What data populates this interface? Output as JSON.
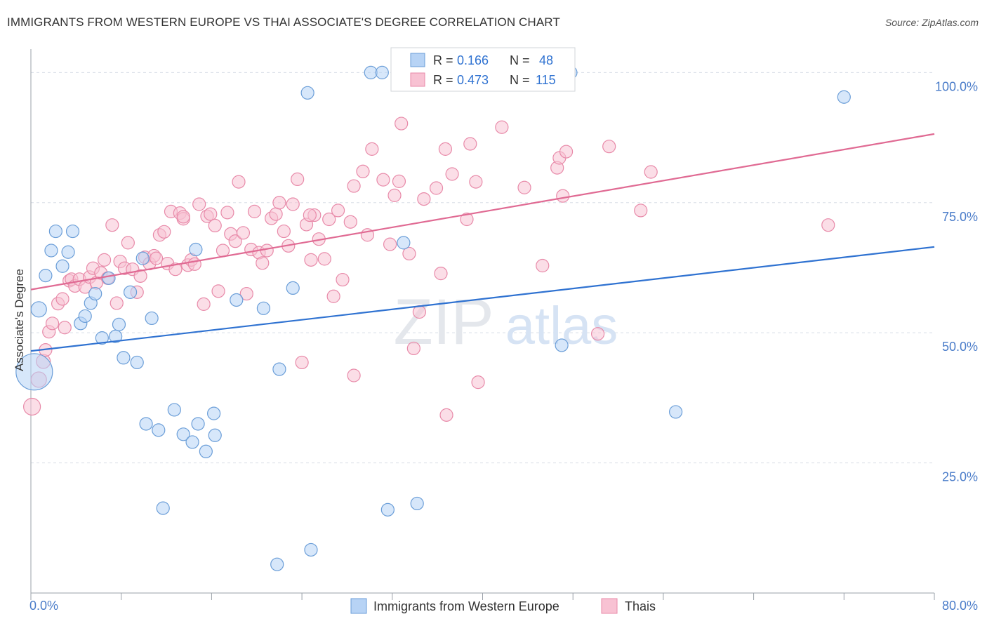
{
  "title": "IMMIGRANTS FROM WESTERN EUROPE VS THAI ASSOCIATE'S DEGREE CORRELATION CHART",
  "source": "Source: ZipAtlas.com",
  "watermark": {
    "zip": "ZIP",
    "atlas": "atlas"
  },
  "colors": {
    "blue_fill": "#b7d3f5",
    "blue_stroke": "#6b9ed8",
    "blue_line": "#2f72d1",
    "pink_fill": "#f8c2d3",
    "pink_stroke": "#e88aa9",
    "pink_line": "#e06a93",
    "axis_text": "#4a7cc9",
    "grid": "#d8dde6"
  },
  "chart_data": {
    "type": "scatter",
    "title": "IMMIGRANTS FROM WESTERN EUROPE VS THAI ASSOCIATE'S DEGREE CORRELATION CHART",
    "xlabel": "",
    "ylabel": "Associate's Degree",
    "xlim": [
      0,
      80
    ],
    "ylim": [
      0,
      104.5
    ],
    "x_tick_labels": [
      "0.0%",
      "80.0%"
    ],
    "y_ticks": [
      25,
      50,
      75,
      100
    ],
    "y_tick_labels": [
      "25.0%",
      "50.0%",
      "75.0%",
      "100.0%"
    ],
    "legend": {
      "position": "top-center",
      "entries": [
        {
          "r_label": "R = ",
          "r_value": "0.166",
          "n_label": "N = ",
          "n_value": "48"
        },
        {
          "r_label": "R = ",
          "r_value": "0.473",
          "n_label": "N = ",
          "n_value": "115"
        }
      ]
    },
    "bottom_legend": [
      "Immigrants from Western Europe",
      "Thais"
    ],
    "series": [
      {
        "name": "Immigrants from Western Europe",
        "color": "blue",
        "trend": {
          "x": [
            0,
            80
          ],
          "y": [
            46.5,
            66.5
          ]
        },
        "points": [
          {
            "x": 0.3,
            "y": 42.5,
            "s": 26
          },
          {
            "x": 0.7,
            "y": 54.5,
            "s": 11
          },
          {
            "x": 1.3,
            "y": 61.0,
            "s": 9
          },
          {
            "x": 1.8,
            "y": 65.8,
            "s": 9
          },
          {
            "x": 2.2,
            "y": 69.5,
            "s": 9
          },
          {
            "x": 2.8,
            "y": 62.8,
            "s": 9
          },
          {
            "x": 3.3,
            "y": 65.5,
            "s": 9
          },
          {
            "x": 3.7,
            "y": 69.5,
            "s": 9
          },
          {
            "x": 4.4,
            "y": 51.8,
            "s": 9
          },
          {
            "x": 4.8,
            "y": 53.2,
            "s": 9
          },
          {
            "x": 5.3,
            "y": 55.7,
            "s": 9
          },
          {
            "x": 5.7,
            "y": 57.5,
            "s": 9
          },
          {
            "x": 6.3,
            "y": 49.0,
            "s": 9
          },
          {
            "x": 6.9,
            "y": 60.5,
            "s": 9
          },
          {
            "x": 7.5,
            "y": 49.3,
            "s": 9
          },
          {
            "x": 7.8,
            "y": 51.6,
            "s": 9
          },
          {
            "x": 8.2,
            "y": 45.2,
            "s": 9
          },
          {
            "x": 8.8,
            "y": 57.8,
            "s": 9
          },
          {
            "x": 9.4,
            "y": 44.3,
            "s": 9
          },
          {
            "x": 10.2,
            "y": 32.5,
            "s": 9
          },
          {
            "x": 10.7,
            "y": 52.8,
            "s": 9
          },
          {
            "x": 11.3,
            "y": 31.3,
            "s": 9
          },
          {
            "x": 11.7,
            "y": 16.3,
            "s": 9
          },
          {
            "x": 12.7,
            "y": 35.2,
            "s": 9
          },
          {
            "x": 13.5,
            "y": 30.5,
            "s": 9
          },
          {
            "x": 14.3,
            "y": 29.0,
            "s": 9
          },
          {
            "x": 14.8,
            "y": 32.5,
            "s": 9
          },
          {
            "x": 15.5,
            "y": 27.2,
            "s": 9
          },
          {
            "x": 16.3,
            "y": 30.3,
            "s": 9
          },
          {
            "x": 16.2,
            "y": 34.5,
            "s": 9
          },
          {
            "x": 14.6,
            "y": 66.0,
            "s": 9
          },
          {
            "x": 18.2,
            "y": 56.3,
            "s": 9
          },
          {
            "x": 20.6,
            "y": 54.7,
            "s": 9
          },
          {
            "x": 22.0,
            "y": 43.0,
            "s": 9
          },
          {
            "x": 23.2,
            "y": 58.6,
            "s": 9
          },
          {
            "x": 21.8,
            "y": 5.5,
            "s": 9
          },
          {
            "x": 24.8,
            "y": 8.3,
            "s": 9
          },
          {
            "x": 24.5,
            "y": 96.1,
            "s": 9
          },
          {
            "x": 30.1,
            "y": 100.0,
            "s": 9
          },
          {
            "x": 31.1,
            "y": 100.0,
            "s": 9
          },
          {
            "x": 31.6,
            "y": 16.0,
            "s": 9
          },
          {
            "x": 34.2,
            "y": 17.2,
            "s": 9
          },
          {
            "x": 33.0,
            "y": 67.3,
            "s": 9
          },
          {
            "x": 47.8,
            "y": 100.0,
            "s": 9
          },
          {
            "x": 47.0,
            "y": 47.6,
            "s": 9
          },
          {
            "x": 57.1,
            "y": 34.8,
            "s": 9
          },
          {
            "x": 72.0,
            "y": 95.3,
            "s": 9
          },
          {
            "x": 9.9,
            "y": 64.3,
            "s": 9
          }
        ]
      },
      {
        "name": "Thais",
        "color": "pink",
        "trend": {
          "x": [
            0,
            80
          ],
          "y": [
            58.3,
            88.2
          ]
        },
        "points": [
          {
            "x": 0.1,
            "y": 35.8,
            "s": 12
          },
          {
            "x": 0.7,
            "y": 41.0,
            "s": 11
          },
          {
            "x": 1.1,
            "y": 44.5,
            "s": 10
          },
          {
            "x": 1.3,
            "y": 46.7,
            "s": 9
          },
          {
            "x": 1.6,
            "y": 50.2,
            "s": 9
          },
          {
            "x": 1.9,
            "y": 51.8,
            "s": 9
          },
          {
            "x": 2.4,
            "y": 55.6,
            "s": 9
          },
          {
            "x": 2.8,
            "y": 56.5,
            "s": 9
          },
          {
            "x": 3.0,
            "y": 51.0,
            "s": 9
          },
          {
            "x": 3.4,
            "y": 60.0,
            "s": 9
          },
          {
            "x": 3.6,
            "y": 60.3,
            "s": 9
          },
          {
            "x": 3.9,
            "y": 59.0,
            "s": 9
          },
          {
            "x": 4.3,
            "y": 60.3,
            "s": 9
          },
          {
            "x": 4.8,
            "y": 58.8,
            "s": 9
          },
          {
            "x": 5.2,
            "y": 60.7,
            "s": 9
          },
          {
            "x": 5.5,
            "y": 62.4,
            "s": 9
          },
          {
            "x": 5.8,
            "y": 59.6,
            "s": 9
          },
          {
            "x": 6.2,
            "y": 61.5,
            "s": 9
          },
          {
            "x": 6.5,
            "y": 64.0,
            "s": 9
          },
          {
            "x": 6.8,
            "y": 60.5,
            "s": 9
          },
          {
            "x": 7.2,
            "y": 70.7,
            "s": 9
          },
          {
            "x": 7.6,
            "y": 55.7,
            "s": 9
          },
          {
            "x": 7.9,
            "y": 63.7,
            "s": 9
          },
          {
            "x": 8.3,
            "y": 62.4,
            "s": 9
          },
          {
            "x": 8.6,
            "y": 67.3,
            "s": 9
          },
          {
            "x": 9.0,
            "y": 62.2,
            "s": 9
          },
          {
            "x": 9.4,
            "y": 57.8,
            "s": 9
          },
          {
            "x": 9.7,
            "y": 60.9,
            "s": 9
          },
          {
            "x": 10.1,
            "y": 64.5,
            "s": 9
          },
          {
            "x": 10.5,
            "y": 63.3,
            "s": 9
          },
          {
            "x": 10.9,
            "y": 64.8,
            "s": 9
          },
          {
            "x": 11.1,
            "y": 64.3,
            "s": 9
          },
          {
            "x": 11.4,
            "y": 68.8,
            "s": 9
          },
          {
            "x": 11.8,
            "y": 69.4,
            "s": 9
          },
          {
            "x": 12.1,
            "y": 63.3,
            "s": 9
          },
          {
            "x": 12.4,
            "y": 73.3,
            "s": 9
          },
          {
            "x": 12.8,
            "y": 62.2,
            "s": 9
          },
          {
            "x": 13.2,
            "y": 73.0,
            "s": 9
          },
          {
            "x": 13.5,
            "y": 71.9,
            "s": 9
          },
          {
            "x": 13.9,
            "y": 63.0,
            "s": 9
          },
          {
            "x": 14.2,
            "y": 64.0,
            "s": 9
          },
          {
            "x": 14.5,
            "y": 63.2,
            "s": 9
          },
          {
            "x": 14.9,
            "y": 74.7,
            "s": 9
          },
          {
            "x": 15.3,
            "y": 55.5,
            "s": 9
          },
          {
            "x": 15.6,
            "y": 72.4,
            "s": 9
          },
          {
            "x": 15.9,
            "y": 72.8,
            "s": 9
          },
          {
            "x": 16.3,
            "y": 70.6,
            "s": 9
          },
          {
            "x": 16.6,
            "y": 58.0,
            "s": 9
          },
          {
            "x": 17.0,
            "y": 65.8,
            "s": 9
          },
          {
            "x": 17.4,
            "y": 73.1,
            "s": 9
          },
          {
            "x": 17.7,
            "y": 69.0,
            "s": 9
          },
          {
            "x": 18.1,
            "y": 67.6,
            "s": 9
          },
          {
            "x": 18.4,
            "y": 79.0,
            "s": 9
          },
          {
            "x": 18.8,
            "y": 69.2,
            "s": 9
          },
          {
            "x": 19.1,
            "y": 57.5,
            "s": 9
          },
          {
            "x": 19.5,
            "y": 66.0,
            "s": 9
          },
          {
            "x": 19.8,
            "y": 73.3,
            "s": 9
          },
          {
            "x": 20.2,
            "y": 65.4,
            "s": 9
          },
          {
            "x": 20.5,
            "y": 63.4,
            "s": 9
          },
          {
            "x": 20.9,
            "y": 65.8,
            "s": 9
          },
          {
            "x": 21.3,
            "y": 72.0,
            "s": 9
          },
          {
            "x": 21.7,
            "y": 72.8,
            "s": 9
          },
          {
            "x": 22.0,
            "y": 75.0,
            "s": 9
          },
          {
            "x": 22.4,
            "y": 69.5,
            "s": 9
          },
          {
            "x": 22.8,
            "y": 66.7,
            "s": 9
          },
          {
            "x": 23.2,
            "y": 74.7,
            "s": 9
          },
          {
            "x": 23.6,
            "y": 79.5,
            "s": 9
          },
          {
            "x": 24.0,
            "y": 44.3,
            "s": 9
          },
          {
            "x": 24.4,
            "y": 70.8,
            "s": 9
          },
          {
            "x": 24.8,
            "y": 64.0,
            "s": 9
          },
          {
            "x": 25.1,
            "y": 72.6,
            "s": 9
          },
          {
            "x": 25.5,
            "y": 68.0,
            "s": 9
          },
          {
            "x": 26.0,
            "y": 64.2,
            "s": 9
          },
          {
            "x": 26.4,
            "y": 71.8,
            "s": 9
          },
          {
            "x": 26.8,
            "y": 57.0,
            "s": 9
          },
          {
            "x": 27.2,
            "y": 73.5,
            "s": 9
          },
          {
            "x": 27.6,
            "y": 60.2,
            "s": 9
          },
          {
            "x": 28.3,
            "y": 71.3,
            "s": 9
          },
          {
            "x": 28.6,
            "y": 78.2,
            "s": 9
          },
          {
            "x": 28.6,
            "y": 41.8,
            "s": 9
          },
          {
            "x": 29.4,
            "y": 81.0,
            "s": 9
          },
          {
            "x": 29.8,
            "y": 68.8,
            "s": 9
          },
          {
            "x": 30.2,
            "y": 85.3,
            "s": 9
          },
          {
            "x": 31.2,
            "y": 79.4,
            "s": 9
          },
          {
            "x": 31.8,
            "y": 67.0,
            "s": 9
          },
          {
            "x": 32.2,
            "y": 76.4,
            "s": 9
          },
          {
            "x": 32.6,
            "y": 79.1,
            "s": 9
          },
          {
            "x": 32.8,
            "y": 90.2,
            "s": 9
          },
          {
            "x": 33.5,
            "y": 65.2,
            "s": 9
          },
          {
            "x": 33.9,
            "y": 47.0,
            "s": 9
          },
          {
            "x": 34.4,
            "y": 54.0,
            "s": 9
          },
          {
            "x": 34.8,
            "y": 75.7,
            "s": 9
          },
          {
            "x": 35.9,
            "y": 77.8,
            "s": 9
          },
          {
            "x": 36.3,
            "y": 61.4,
            "s": 9
          },
          {
            "x": 36.7,
            "y": 85.3,
            "s": 9
          },
          {
            "x": 36.8,
            "y": 34.2,
            "s": 9
          },
          {
            "x": 37.3,
            "y": 80.5,
            "s": 9
          },
          {
            "x": 38.6,
            "y": 71.8,
            "s": 9
          },
          {
            "x": 38.9,
            "y": 86.3,
            "s": 9
          },
          {
            "x": 39.4,
            "y": 79.0,
            "s": 9
          },
          {
            "x": 39.6,
            "y": 40.5,
            "s": 9
          },
          {
            "x": 41.7,
            "y": 89.5,
            "s": 9
          },
          {
            "x": 43.7,
            "y": 77.9,
            "s": 9
          },
          {
            "x": 45.3,
            "y": 62.9,
            "s": 9
          },
          {
            "x": 46.6,
            "y": 81.7,
            "s": 9
          },
          {
            "x": 46.8,
            "y": 83.6,
            "s": 9
          },
          {
            "x": 47.1,
            "y": 76.3,
            "s": 9
          },
          {
            "x": 47.4,
            "y": 84.8,
            "s": 9
          },
          {
            "x": 50.2,
            "y": 49.8,
            "s": 9
          },
          {
            "x": 51.2,
            "y": 85.8,
            "s": 9
          },
          {
            "x": 54.0,
            "y": 73.5,
            "s": 9
          },
          {
            "x": 54.9,
            "y": 80.9,
            "s": 9
          },
          {
            "x": 70.6,
            "y": 70.7,
            "s": 9
          },
          {
            "x": 13.5,
            "y": 72.3,
            "s": 9
          },
          {
            "x": 24.7,
            "y": 72.6,
            "s": 9
          }
        ]
      }
    ]
  }
}
